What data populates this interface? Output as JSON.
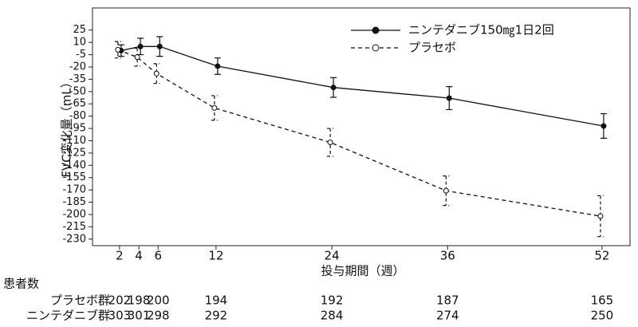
{
  "chart_data": {
    "type": "line",
    "xlabel": "投与期間（週）",
    "ylabel": "FVC変化量（mL）",
    "x": [
      2,
      4,
      6,
      12,
      24,
      36,
      52
    ],
    "series": [
      {
        "name": "ニンテダニブ150㎎1日2回",
        "color": "#111111",
        "marker": "filled",
        "dashed": false,
        "values": [
          0,
          5,
          5,
          -19,
          -45,
          -58,
          -92
        ],
        "errors": [
          7,
          10,
          12,
          10,
          12,
          14,
          15
        ]
      },
      {
        "name": "プラセボ",
        "color": "#111111",
        "marker": "open",
        "dashed": true,
        "values": [
          1,
          -8,
          -28,
          -70,
          -112,
          -171,
          -202
        ],
        "errors": [
          10,
          11,
          12,
          15,
          17,
          18,
          25
        ]
      }
    ],
    "xlim": [
      -0.8,
      54.9
    ],
    "xticks": [
      2,
      4,
      6,
      12,
      24,
      36,
      52
    ],
    "ylim": [
      -238,
      52
    ],
    "yticks": [
      25,
      10,
      -5,
      -20,
      -35,
      -50,
      -65,
      -80,
      -95,
      -110,
      -125,
      -140,
      -155,
      -170,
      -185,
      -200,
      -215,
      -230
    ],
    "legend": "top-right",
    "at_risk": {
      "title": "患者数",
      "rows": [
        {
          "label": "プラセボ群",
          "values": [
            202,
            198,
            200,
            194,
            192,
            187,
            165
          ]
        },
        {
          "label": "ニンテダニブ群",
          "values": [
            303,
            301,
            298,
            292,
            284,
            274,
            250
          ]
        }
      ]
    }
  }
}
